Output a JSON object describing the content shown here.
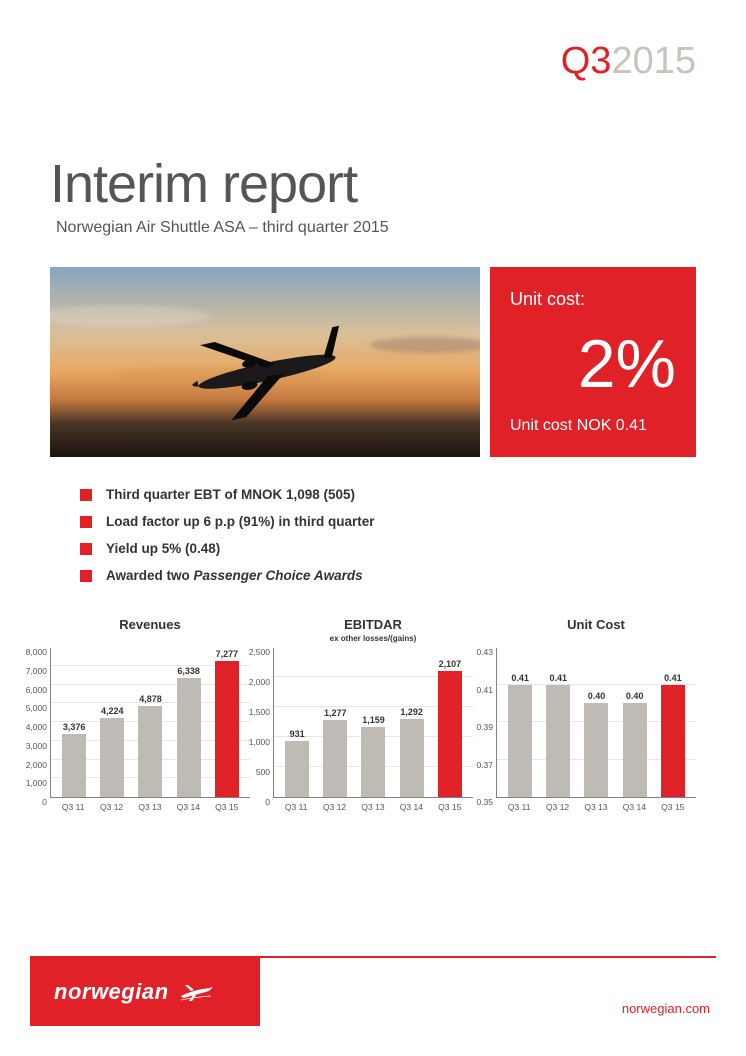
{
  "colors": {
    "brand_red": "#e02128",
    "grey": "#c9c3bd",
    "text": "#555555",
    "bar_grey": "#bfbab4",
    "axis": "#808080",
    "grid": "#e6e6e6"
  },
  "header": {
    "quarter_prefix": "Q3",
    "year": "2015"
  },
  "title": "Interim report",
  "subtitle": "Norwegian Air Shuttle ASA – third quarter 2015",
  "hero_card": {
    "top": "Unit cost:",
    "big": "2%",
    "bottom": "Unit cost NOK 0.41"
  },
  "bullets": [
    "Third quarter EBT of MNOK 1,098 (505)",
    "Load factor up 6 p.p (91%) in third quarter",
    "Yield up 5% (0.48)",
    "Awarded two <em>Passenger Choice Awards</em>"
  ],
  "charts": [
    {
      "title": "Revenues",
      "subtitle": "",
      "ymin": 0,
      "ymax": 8000,
      "ystep": 1000,
      "yformat": "comma",
      "categories": [
        "Q3 11",
        "Q3 12",
        "Q3 13",
        "Q3 14",
        "Q3 15"
      ],
      "values": [
        3376,
        4224,
        4878,
        6338,
        7277
      ],
      "labels": [
        "3,376",
        "4,224",
        "4,878",
        "6,338",
        "7,277"
      ],
      "highlight_last": true
    },
    {
      "title": "EBITDAR",
      "subtitle": "ex other losses/(gains)",
      "ymin": 0,
      "ymax": 2500,
      "ystep": 500,
      "yformat": "comma",
      "categories": [
        "Q3 11",
        "Q3 12",
        "Q3 13",
        "Q3 14",
        "Q3 15"
      ],
      "values": [
        931,
        1277,
        1159,
        1292,
        2107
      ],
      "labels": [
        "931",
        "1,277",
        "1,159",
        "1,292",
        "2,107"
      ],
      "highlight_last": true
    },
    {
      "title": "Unit Cost",
      "subtitle": "",
      "ymin": 0.35,
      "ymax": 0.43,
      "ystep": 0.02,
      "yformat": "decimal2",
      "categories": [
        "Q3 11",
        "Q3 12",
        "Q3 13",
        "Q3 14",
        "Q3 15"
      ],
      "values": [
        0.41,
        0.41,
        0.4,
        0.4,
        0.41
      ],
      "labels": [
        "0.41",
        "0.41",
        "0.40",
        "0.40",
        "0.41"
      ],
      "highlight_last": true
    }
  ],
  "footer": {
    "brand": "norwegian",
    "url": "norwegian.com"
  }
}
